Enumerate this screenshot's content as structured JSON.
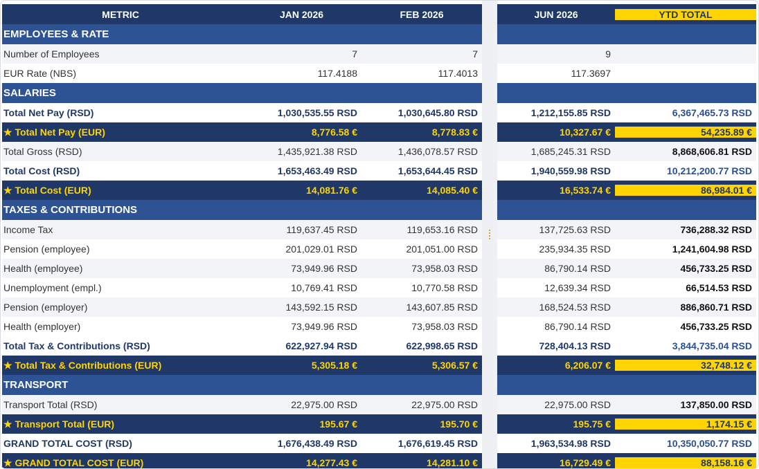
{
  "columns": {
    "metric": "METRIC",
    "jan": "JAN 2026",
    "feb": "FEB 2026",
    "jun": "JUN 2026",
    "ytd": "YTD TOTAL"
  },
  "rows": [
    {
      "type": "header"
    },
    {
      "type": "section",
      "label": "EMPLOYEES & RATE"
    },
    {
      "type": "plain",
      "alt": true,
      "label": "Number of Employees",
      "jan": "7",
      "feb": "7",
      "jun": "9",
      "ytd": ""
    },
    {
      "type": "plain",
      "alt": false,
      "label": "EUR Rate (NBS)",
      "jan": "117.4188",
      "feb": "117.4013",
      "jun": "117.3697",
      "ytd": ""
    },
    {
      "type": "section",
      "label": "SALARIES"
    },
    {
      "type": "total",
      "label": "Total Net Pay (RSD)",
      "jan": "1,030,535.55 RSD",
      "feb": "1,030,645.80 RSD",
      "jun": "1,212,155.85 RSD",
      "ytd": "6,367,465.73 RSD"
    },
    {
      "type": "eur",
      "label": "★ Total Net Pay (EUR)",
      "jan": "8,776.58 €",
      "feb": "8,778.83 €",
      "jun": "10,327.67 €",
      "ytd": "54,235.89 €"
    },
    {
      "type": "plain",
      "alt": true,
      "label": "Total Gross (RSD)",
      "jan": "1,435,921.38 RSD",
      "feb": "1,436,078.57 RSD",
      "jun": "1,685,245.31 RSD",
      "ytd": "8,868,606.81 RSD"
    },
    {
      "type": "total",
      "label": "Total Cost (RSD)",
      "jan": "1,653,463.49 RSD",
      "feb": "1,653,644.45 RSD",
      "jun": "1,940,559.98 RSD",
      "ytd": "10,212,200.77 RSD"
    },
    {
      "type": "eur",
      "label": "★ Total Cost (EUR)",
      "jan": "14,081.76 €",
      "feb": "14,085.40 €",
      "jun": "16,533.74 €",
      "ytd": "86,984.01 €"
    },
    {
      "type": "section",
      "label": "TAXES & CONTRIBUTIONS"
    },
    {
      "type": "plain",
      "alt": true,
      "label": "Income Tax",
      "jan": "119,637.45 RSD",
      "feb": "119,653.16 RSD",
      "jun": "137,725.63 RSD",
      "ytd": "736,288.32 RSD"
    },
    {
      "type": "plain",
      "alt": false,
      "label": "Pension (employee)",
      "jan": "201,029.01 RSD",
      "feb": "201,051.00 RSD",
      "jun": "235,934.35 RSD",
      "ytd": "1,241,604.98 RSD"
    },
    {
      "type": "plain",
      "alt": true,
      "label": "Health (employee)",
      "jan": "73,949.96 RSD",
      "feb": "73,958.03 RSD",
      "jun": "86,790.14 RSD",
      "ytd": "456,733.25 RSD"
    },
    {
      "type": "plain",
      "alt": false,
      "label": "Unemployment (empl.)",
      "jan": "10,769.41 RSD",
      "feb": "10,770.58 RSD",
      "jun": "12,639.34 RSD",
      "ytd": "66,514.53 RSD"
    },
    {
      "type": "plain",
      "alt": true,
      "label": "Pension (employer)",
      "jan": "143,592.15 RSD",
      "feb": "143,607.85 RSD",
      "jun": "168,524.53 RSD",
      "ytd": "886,860.71 RSD"
    },
    {
      "type": "plain",
      "alt": false,
      "label": "Health (employer)",
      "jan": "73,949.96 RSD",
      "feb": "73,958.03 RSD",
      "jun": "86,790.14 RSD",
      "ytd": "456,733.25 RSD"
    },
    {
      "type": "total",
      "label": "Total Tax & Contributions (RSD)",
      "jan": "622,927.94 RSD",
      "feb": "622,998.65 RSD",
      "jun": "728,404.13 RSD",
      "ytd": "3,844,735.04 RSD"
    },
    {
      "type": "eur",
      "label": "★ Total Tax & Contributions (EUR)",
      "jan": "5,305.18 €",
      "feb": "5,306.57 €",
      "jun": "6,206.07 €",
      "ytd": "32,748.12 €"
    },
    {
      "type": "section",
      "label": "TRANSPORT"
    },
    {
      "type": "plain",
      "alt": true,
      "label": "Transport Total (RSD)",
      "jan": "22,975.00 RSD",
      "feb": "22,975.00 RSD",
      "jun": "22,975.00 RSD",
      "ytd": "137,850.00 RSD"
    },
    {
      "type": "eur",
      "label": "★ Transport Total (EUR)",
      "jan": "195.67 €",
      "feb": "195.70 €",
      "jun": "195.75 €",
      "ytd": "1,174.15 €"
    },
    {
      "type": "total",
      "label": "GRAND TOTAL COST (RSD)",
      "jan": "1,676,438.49 RSD",
      "feb": "1,676,619.45 RSD",
      "jun": "1,963,534.98 RSD",
      "ytd": "10,350,050.77 RSD"
    },
    {
      "type": "eur",
      "label": "★ GRAND TOTAL COST (EUR)",
      "jan": "14,277.43 €",
      "feb": "14,281.10 €",
      "jun": "16,729.49 €",
      "ytd": "88,158.16 €"
    }
  ],
  "colors": {
    "header_bg": "#1f3867",
    "section_bg": "#2d5394",
    "accent_yellow": "#ffd400",
    "alt_row_bg": "#f3f4f8"
  }
}
